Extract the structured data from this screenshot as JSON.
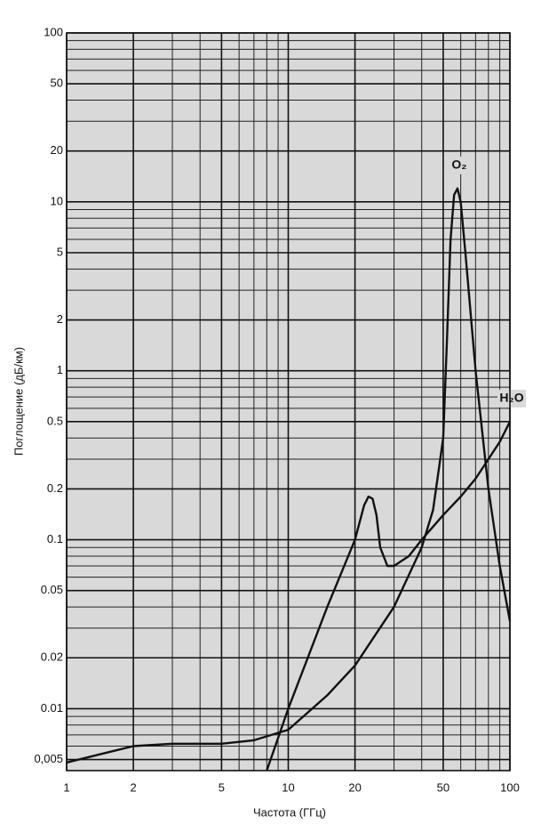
{
  "chart_data": {
    "type": "line",
    "x_label": "Частота (ГГц)",
    "y_label": "Поглощение (дБ/км)",
    "x_log": true,
    "y_log": true,
    "grid": true,
    "xlim": [
      1,
      100
    ],
    "ylim": [
      0.0043,
      100
    ],
    "xticks": [
      1,
      2,
      5,
      10,
      20,
      50,
      100
    ],
    "yticks": [
      {
        "value": 0.005,
        "label": "0,005"
      },
      0.01,
      0.02,
      0.05,
      0.1,
      0.2,
      0.5,
      1,
      2,
      5,
      10,
      20,
      50,
      100
    ],
    "xticks_minor": [
      3,
      4,
      6,
      7,
      8,
      9,
      30,
      40,
      60,
      70,
      80,
      90
    ],
    "yticks_minor": [
      0.006,
      0.007,
      0.008,
      0.009,
      0.03,
      0.04,
      0.06,
      0.07,
      0.08,
      0.09,
      0.3,
      0.4,
      0.6,
      0.7,
      0.8,
      0.9,
      3,
      4,
      6,
      7,
      8,
      9,
      30,
      40,
      60,
      70,
      80,
      90
    ],
    "series": [
      {
        "name": "H₂O",
        "color": "#111111",
        "x": [
          8,
          10,
          15,
          20,
          22,
          23,
          24,
          25,
          26,
          28,
          30,
          35,
          40,
          50,
          60,
          70,
          80,
          90,
          100
        ],
        "values": [
          0.0043,
          0.01,
          0.04,
          0.1,
          0.16,
          0.18,
          0.175,
          0.14,
          0.09,
          0.07,
          0.07,
          0.08,
          0.1,
          0.14,
          0.18,
          0.23,
          0.3,
          0.38,
          0.5
        ]
      },
      {
        "name": "O₂",
        "color": "#111111",
        "x": [
          1,
          2,
          3,
          5,
          7,
          10,
          15,
          20,
          30,
          40,
          45,
          50,
          52,
          54,
          56,
          58,
          60,
          63,
          70,
          80,
          90,
          100
        ],
        "values": [
          0.0048,
          0.006,
          0.0062,
          0.0062,
          0.0065,
          0.0075,
          0.012,
          0.018,
          0.04,
          0.09,
          0.15,
          0.4,
          1.5,
          6,
          11,
          12,
          10,
          5,
          1,
          0.2,
          0.07,
          0.033
        ]
      }
    ]
  }
}
